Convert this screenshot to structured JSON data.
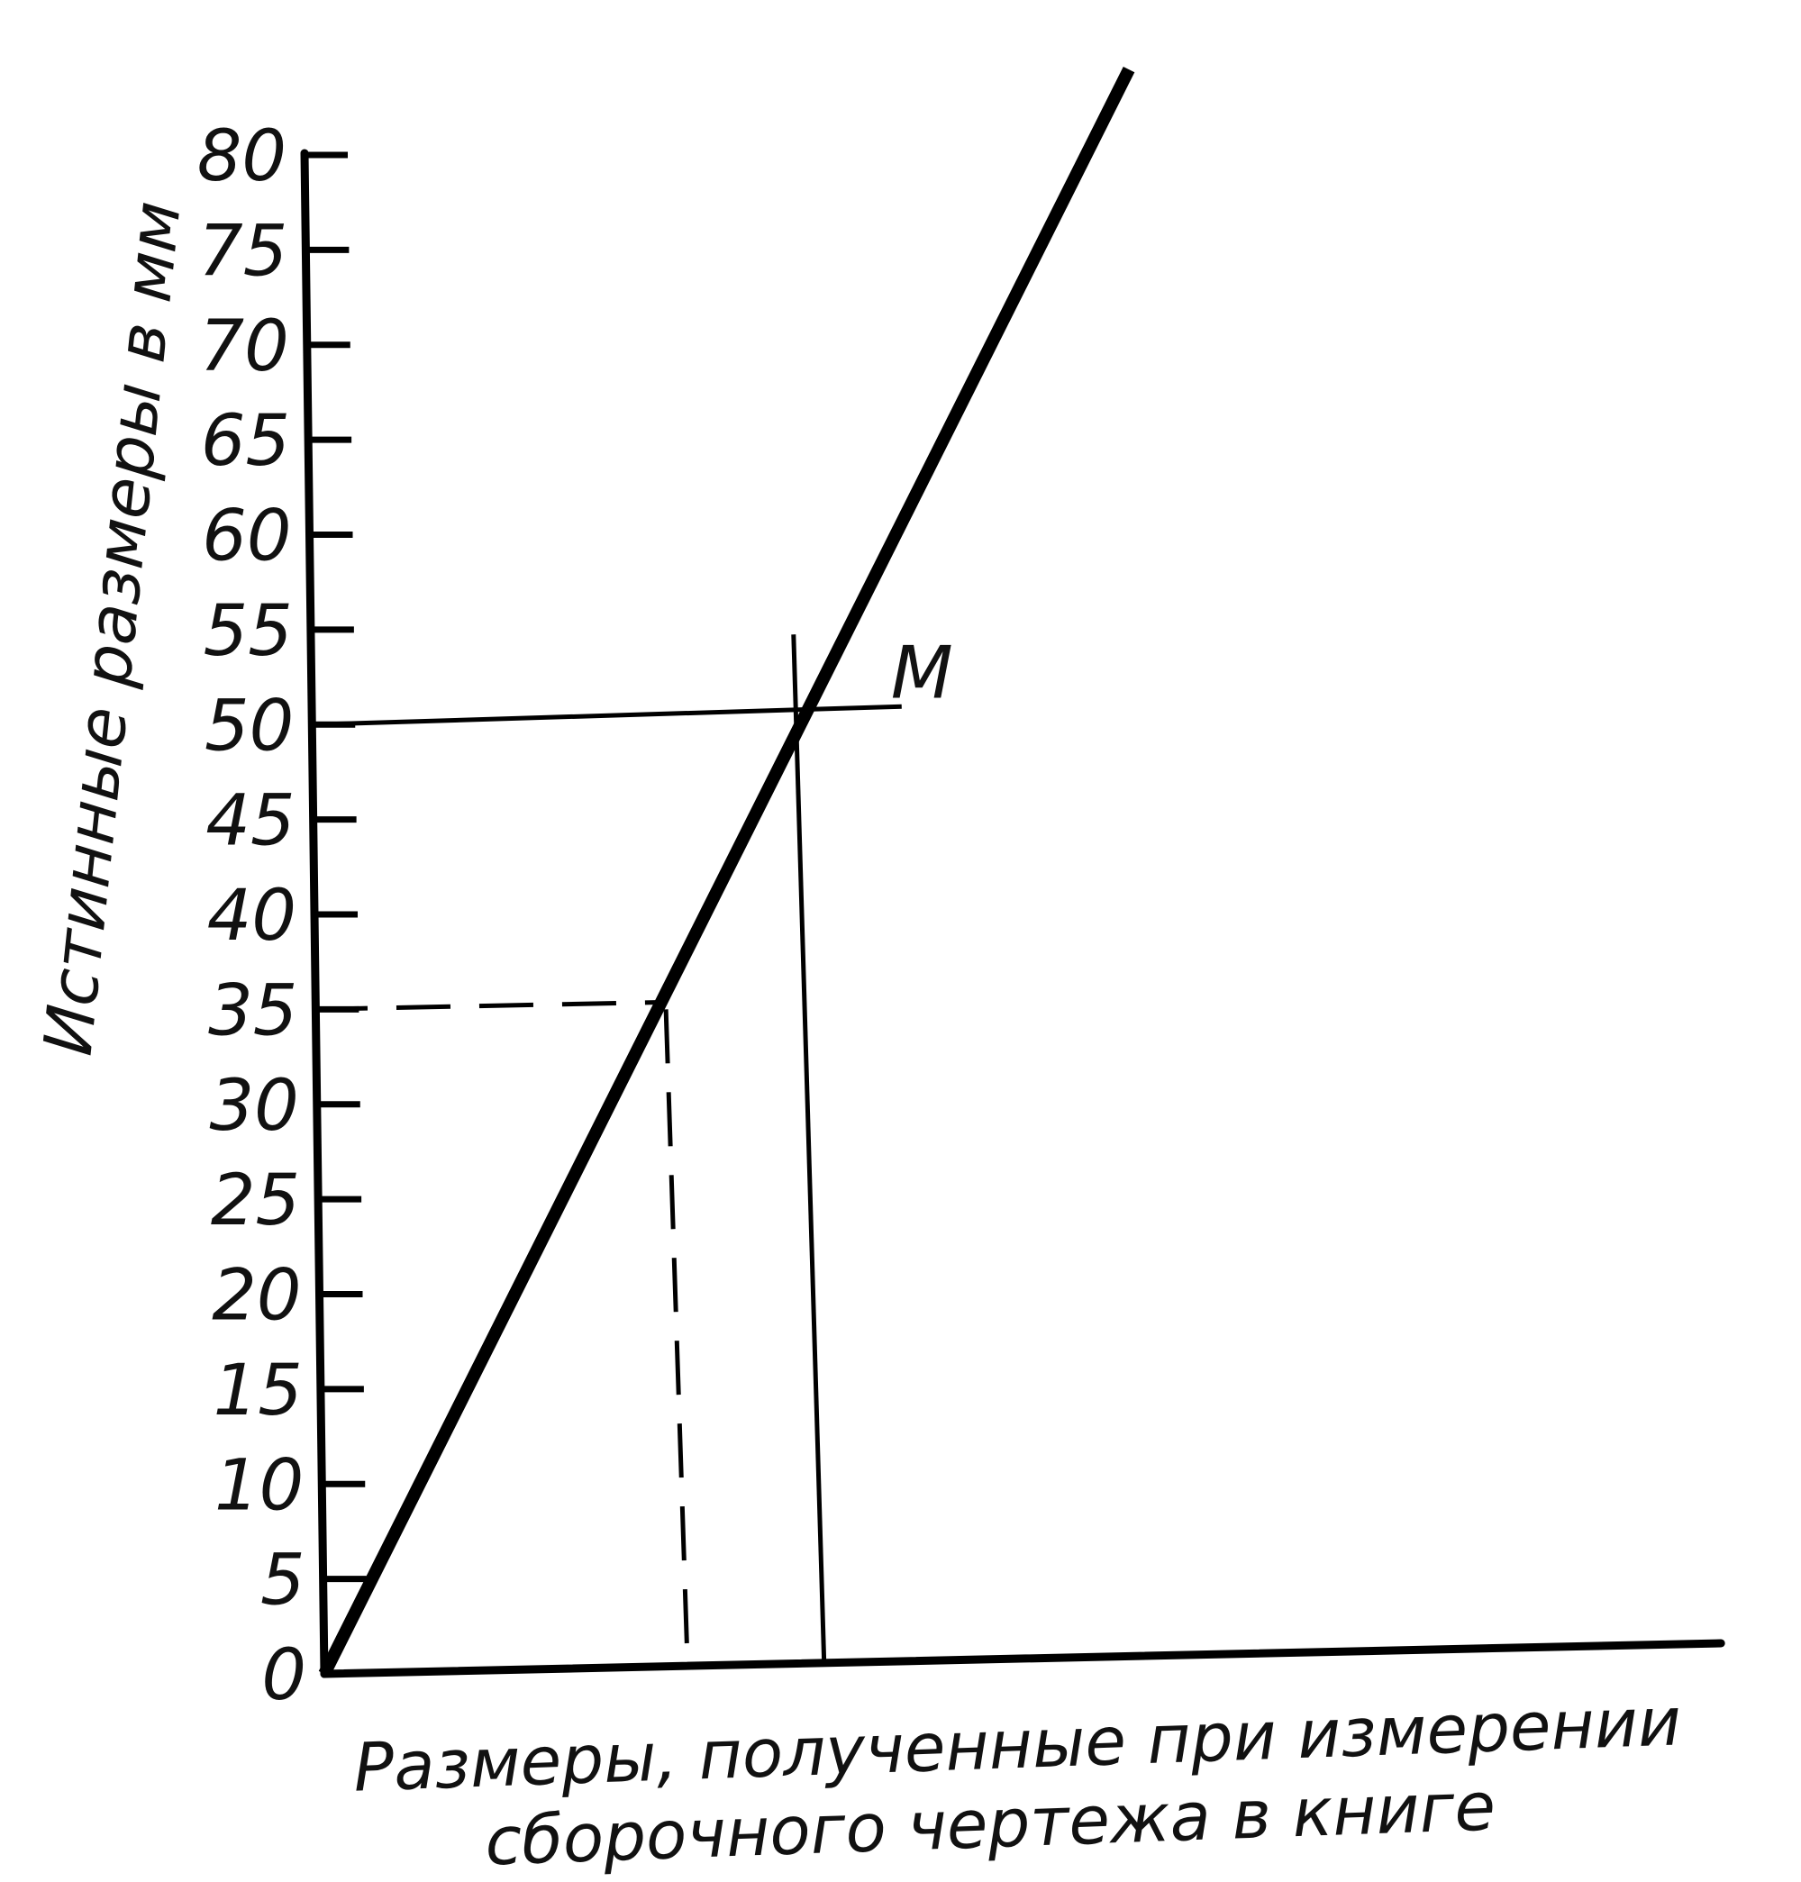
{
  "chart_data": {
    "type": "line",
    "ylabel": "Истинные размеры в мм",
    "xlabel_lines": [
      "Размеры, полученные при измерении",
      "сборочного чертежа в книге"
    ],
    "y_ticks": [
      "0",
      "5",
      "10",
      "15",
      "20",
      "25",
      "30",
      "35",
      "40",
      "45",
      "50",
      "55",
      "60",
      "65",
      "70",
      "75",
      "80"
    ],
    "ylim": [
      0,
      80
    ],
    "x_axis_extent": 92,
    "grid": false,
    "legend": "none",
    "series": [
      {
        "values": [
          [
            0,
            0
          ],
          [
            53,
            84.5
          ]
        ],
        "color": "#000000"
      }
    ],
    "annotations": [
      {
        "label": "M",
        "point": [
          31.5,
          50
        ],
        "style": "solid"
      },
      {
        "label": "",
        "point": [
          22.5,
          35
        ],
        "style": "dashed"
      }
    ]
  }
}
